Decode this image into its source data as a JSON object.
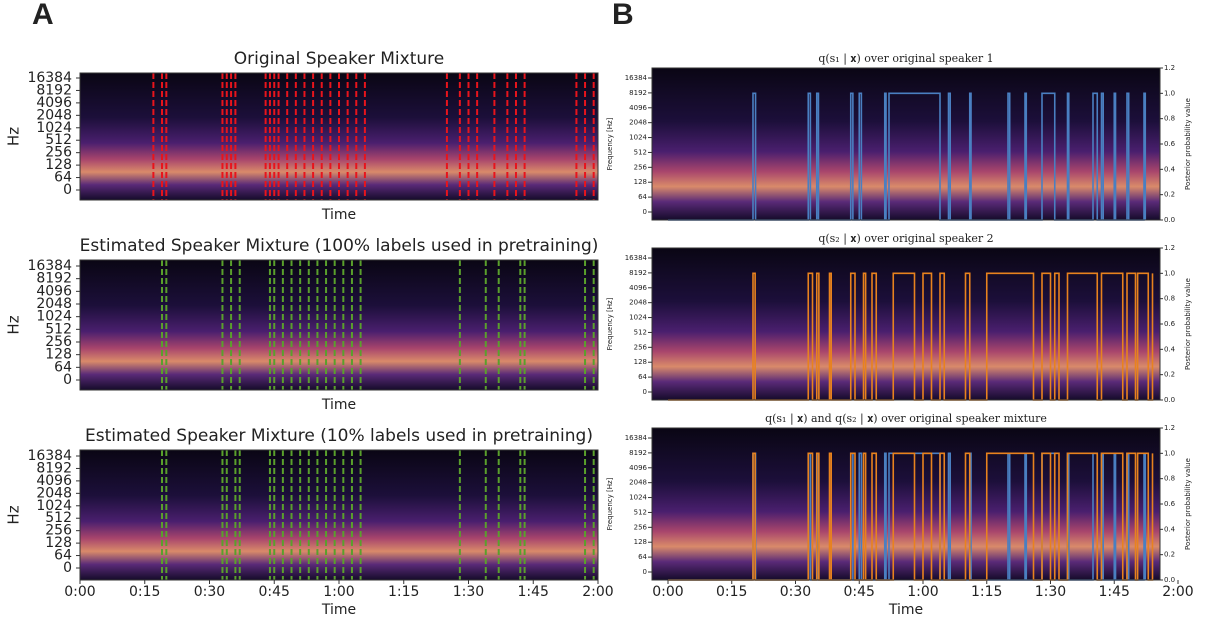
{
  "panel_labels": [
    "A",
    "B"
  ],
  "chart_data": [
    {
      "type": "spectrogram",
      "title": "Original Speaker Mixture",
      "ylabel": "Hz",
      "xlabel": "Time",
      "y_levels": [
        0,
        64,
        128,
        256,
        512,
        1024,
        2048,
        4096,
        8192,
        16384
      ],
      "xlim": [
        0,
        120
      ],
      "boundaries": {
        "color": "#e8141c",
        "x": [
          17,
          19,
          20,
          33,
          34,
          35,
          36,
          43,
          44,
          45,
          46,
          48,
          50,
          52,
          54,
          56,
          58,
          60,
          62,
          64,
          66,
          85,
          88,
          90,
          92,
          96,
          99,
          101,
          103,
          115,
          117,
          119
        ]
      }
    },
    {
      "type": "spectrogram",
      "title": "Estimated Speaker Mixture (100% labels used in pretraining)",
      "ylabel": "Hz",
      "xlabel": "Time",
      "y_levels": [
        0,
        64,
        128,
        256,
        512,
        1024,
        2048,
        4096,
        8192,
        16384
      ],
      "xlim": [
        0,
        120
      ],
      "boundaries": {
        "color": "#5aa02c",
        "x": [
          19,
          20,
          33,
          35,
          37,
          44,
          45,
          47,
          49,
          51,
          53,
          55,
          57,
          59,
          61,
          63,
          65,
          88,
          94,
          97,
          102,
          103,
          117,
          119
        ]
      }
    },
    {
      "type": "spectrogram",
      "title": "Estimated Speaker Mixture (10% labels used in pretraining)",
      "ylabel": "Hz",
      "xlabel": "Time",
      "y_levels": [
        0,
        64,
        128,
        256,
        512,
        1024,
        2048,
        4096,
        8192,
        16384
      ],
      "xlim": [
        0,
        120
      ],
      "xticks": [
        {
          "value": 0,
          "label": "0:00"
        },
        {
          "value": 15,
          "label": "0:15"
        },
        {
          "value": 30,
          "label": "0:30"
        },
        {
          "value": 45,
          "label": "0:45"
        },
        {
          "value": 60,
          "label": "1:00"
        },
        {
          "value": 75,
          "label": "1:15"
        },
        {
          "value": 90,
          "label": "1:30"
        },
        {
          "value": 105,
          "label": "1:45"
        },
        {
          "value": 120,
          "label": "2:00"
        }
      ],
      "boundaries": {
        "color": "#5aa02c",
        "x": [
          19,
          20,
          33,
          34,
          36,
          37,
          44,
          45,
          47,
          49,
          51,
          53,
          55,
          57,
          59,
          61,
          63,
          65,
          88,
          94,
          97,
          102,
          103,
          117,
          119
        ]
      }
    },
    {
      "type": "step",
      "title": "q(s₁ | 𝐱) over original speaker 1",
      "ylabel": "Frequency [Hz]",
      "y2label": "Posterior probability value",
      "y2color": "#4a7fc1",
      "y_levels": [
        0,
        64,
        128,
        256,
        512,
        1024,
        2048,
        4096,
        8192,
        16384
      ],
      "xlim": [
        0,
        120
      ],
      "y2lim": [
        0,
        1.2
      ],
      "y2ticks": [
        {
          "value": 0,
          "label": "0.0"
        },
        0.2,
        0.4,
        0.6,
        0.8,
        {
          "value": 1,
          "label": "1.0"
        },
        1.2
      ],
      "series": [
        {
          "color": "#4a7fc1",
          "x": [
            0,
            20,
            20.6,
            33,
            33.5,
            35,
            35.4,
            43,
            43.5,
            45,
            45.5,
            51,
            51.3,
            52,
            64,
            66,
            66.4,
            71,
            71.3,
            80,
            80.4,
            84,
            84.3,
            88,
            91,
            94,
            94.3,
            100,
            101,
            102,
            102.4,
            105,
            105.3,
            108,
            108.4,
            112,
            112.3
          ],
          "values": [
            0,
            1,
            0,
            1,
            0,
            1,
            0,
            1,
            0,
            1,
            0,
            1,
            0,
            1,
            0,
            1,
            0,
            1,
            0,
            1,
            0,
            1,
            0,
            1,
            0,
            1,
            0,
            1,
            0,
            1,
            0,
            1,
            0,
            1,
            0,
            1,
            0
          ]
        }
      ]
    },
    {
      "type": "step",
      "title": "q(s₂ | 𝐱) over original speaker 2",
      "ylabel": "Frequency [Hz]",
      "y2label": "Posterior probability value",
      "y2color": "#e8821e",
      "y_levels": [
        0,
        64,
        128,
        256,
        512,
        1024,
        2048,
        4096,
        8192,
        16384
      ],
      "xlim": [
        0,
        120
      ],
      "y2lim": [
        0,
        1.2
      ],
      "y2ticks": [
        {
          "value": 0,
          "label": "0.0"
        },
        0.2,
        0.4,
        0.6,
        0.8,
        {
          "value": 1,
          "label": "1.0"
        },
        1.2
      ],
      "series": [
        {
          "color": "#e8821e",
          "x": [
            0,
            20,
            20.5,
            33,
            34,
            35,
            35.5,
            38,
            38.4,
            43,
            44,
            46,
            46.5,
            48,
            49,
            53,
            58,
            60,
            62,
            64,
            65,
            70,
            71,
            75,
            86,
            88,
            90,
            91,
            92,
            94,
            101,
            102,
            107,
            108,
            110,
            110.5,
            113,
            114
          ],
          "values": [
            0,
            1,
            0,
            1,
            0,
            1,
            0,
            1,
            0,
            1,
            0,
            1,
            0,
            1,
            0,
            1,
            0,
            1,
            0,
            1,
            0,
            1,
            0,
            1,
            0,
            1,
            0,
            1,
            0,
            1,
            0,
            1,
            0,
            1,
            0,
            1,
            0,
            1
          ]
        }
      ]
    },
    {
      "type": "step",
      "title": "q(s₁ | 𝐱) and q(s₂ | 𝐱) over original speaker mixture",
      "ylabel": "Frequency [Hz]",
      "y2label": "Posterior probability value",
      "xlabel": "Time",
      "y2color": "#222222",
      "y_levels": [
        0,
        64,
        128,
        256,
        512,
        1024,
        2048,
        4096,
        8192,
        16384
      ],
      "xlim": [
        0,
        120
      ],
      "y2lim": [
        0,
        1.2
      ],
      "y2ticks": [
        {
          "value": 0,
          "label": "0.0"
        },
        0.2,
        0.4,
        0.6,
        0.8,
        {
          "value": 1,
          "label": "1.0"
        },
        1.2
      ],
      "xticks": [
        {
          "value": 0,
          "label": "0:00"
        },
        {
          "value": 15,
          "label": "0:15"
        },
        {
          "value": 30,
          "label": "0:30"
        },
        {
          "value": 45,
          "label": "0:45"
        },
        {
          "value": 60,
          "label": "1:00"
        },
        {
          "value": 75,
          "label": "1:15"
        },
        {
          "value": 90,
          "label": "1:30"
        },
        {
          "value": 105,
          "label": "1:45"
        },
        {
          "value": 120,
          "label": "2:00"
        }
      ],
      "series": [
        {
          "color": "#4a7fc1",
          "x": [
            0,
            20,
            20.6,
            33,
            33.5,
            35,
            35.4,
            43,
            43.5,
            45,
            45.5,
            51,
            51.3,
            52,
            64,
            66,
            66.4,
            71,
            71.3,
            80,
            80.4,
            84,
            84.3,
            88,
            91,
            94,
            94.3,
            100,
            101,
            102,
            102.4,
            105,
            105.3,
            108,
            108.4,
            112,
            112.3
          ],
          "values": [
            0,
            1,
            0,
            1,
            0,
            1,
            0,
            1,
            0,
            1,
            0,
            1,
            0,
            1,
            0,
            1,
            0,
            1,
            0,
            1,
            0,
            1,
            0,
            1,
            0,
            1,
            0,
            1,
            0,
            1,
            0,
            1,
            0,
            1,
            0,
            1,
            0
          ]
        },
        {
          "color": "#e8821e",
          "x": [
            0,
            20,
            20.5,
            33,
            34,
            35,
            35.5,
            38,
            38.4,
            43,
            44,
            46,
            46.5,
            48,
            49,
            53,
            58,
            60,
            62,
            64,
            65,
            70,
            71,
            75,
            86,
            88,
            90,
            91,
            92,
            94,
            101,
            102,
            107,
            108,
            110,
            110.5,
            113,
            114
          ],
          "values": [
            0,
            1,
            0,
            1,
            0,
            1,
            0,
            1,
            0,
            1,
            0,
            1,
            0,
            1,
            0,
            1,
            0,
            1,
            0,
            1,
            0,
            1,
            0,
            1,
            0,
            1,
            0,
            1,
            0,
            1,
            0,
            1,
            0,
            1,
            0,
            1,
            0,
            1
          ]
        }
      ]
    }
  ]
}
